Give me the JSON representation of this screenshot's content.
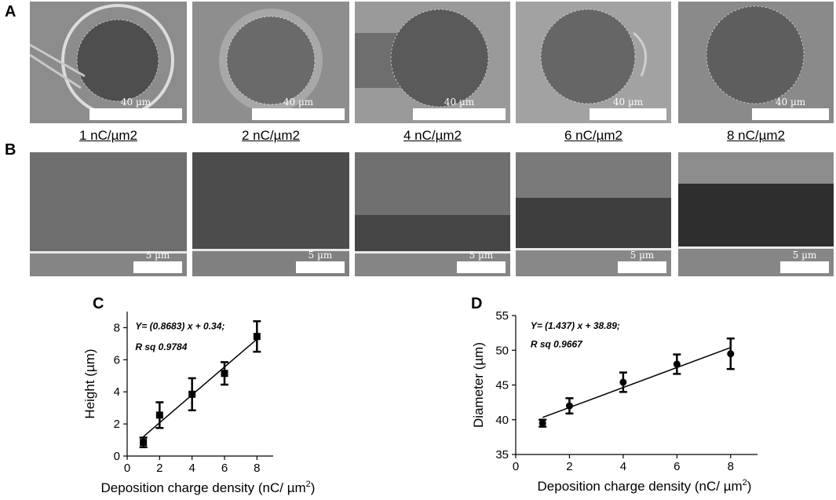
{
  "panel_labels": {
    "a": "A",
    "b": "B",
    "c": "C",
    "d": "D"
  },
  "row_a": {
    "images": [
      {
        "caption": "1 nC/µm2",
        "scale": "40 µm"
      },
      {
        "caption": "2 nC/µm2",
        "scale": "40 µm"
      },
      {
        "caption": "4 nC/µm2",
        "scale": "40 µm"
      },
      {
        "caption": "6 nC/µm2",
        "scale": "40 µm"
      },
      {
        "caption": "8 nC/µm2",
        "scale": "40 µm"
      }
    ]
  },
  "row_b": {
    "images": [
      {
        "scale": "5 µm"
      },
      {
        "scale": "5 µm"
      },
      {
        "scale": "5 µm"
      },
      {
        "scale": "5 µm"
      },
      {
        "scale": "5 µm"
      }
    ]
  },
  "chart_data": [
    {
      "type": "scatter",
      "panel": "C",
      "xlabel": "Deposition charge density (nC/ µm",
      "xlabel_sup": "2",
      "xlabel_end": ")",
      "ylabel": "Height (µm)",
      "xlim": [
        0,
        9
      ],
      "ylim": [
        0,
        9
      ],
      "xticks": [
        0,
        2,
        4,
        6,
        8
      ],
      "yticks": [
        0,
        2,
        4,
        6,
        8
      ],
      "marker": "square",
      "points": [
        {
          "x": 1,
          "y": 0.85,
          "err": 0.3
        },
        {
          "x": 2,
          "y": 2.55,
          "err": 0.8
        },
        {
          "x": 4,
          "y": 3.85,
          "err": 1.0
        },
        {
          "x": 6,
          "y": 5.15,
          "err": 0.7
        },
        {
          "x": 8,
          "y": 7.45,
          "err": 0.95
        }
      ],
      "fit": {
        "slope": 0.8683,
        "intercept": 0.34,
        "x_range": [
          1,
          8
        ]
      },
      "annotation_eq": "Y= (0.8683) x + 0.34;",
      "annotation_r": "R sq 0.9784"
    },
    {
      "type": "scatter",
      "panel": "D",
      "xlabel": "Deposition charge density (nC/ µm",
      "xlabel_sup": "2",
      "xlabel_end": ")",
      "ylabel": "Diameter (µm)",
      "xlim": [
        0,
        9
      ],
      "ylim": [
        35,
        55
      ],
      "xticks": [
        0,
        2,
        4,
        6,
        8
      ],
      "yticks": [
        35,
        40,
        45,
        50,
        55
      ],
      "marker": "circle",
      "points": [
        {
          "x": 1,
          "y": 39.5,
          "err": 0.5
        },
        {
          "x": 2,
          "y": 42.0,
          "err": 1.1
        },
        {
          "x": 4,
          "y": 45.4,
          "err": 1.4
        },
        {
          "x": 6,
          "y": 48.0,
          "err": 1.4
        },
        {
          "x": 8,
          "y": 49.5,
          "err": 2.2
        }
      ],
      "fit": {
        "slope": 1.437,
        "intercept": 38.89,
        "x_range": [
          1,
          8
        ]
      },
      "annotation_eq": "Y= (1.437) x + 38.89;",
      "annotation_r": "R sq 0.9667"
    }
  ]
}
